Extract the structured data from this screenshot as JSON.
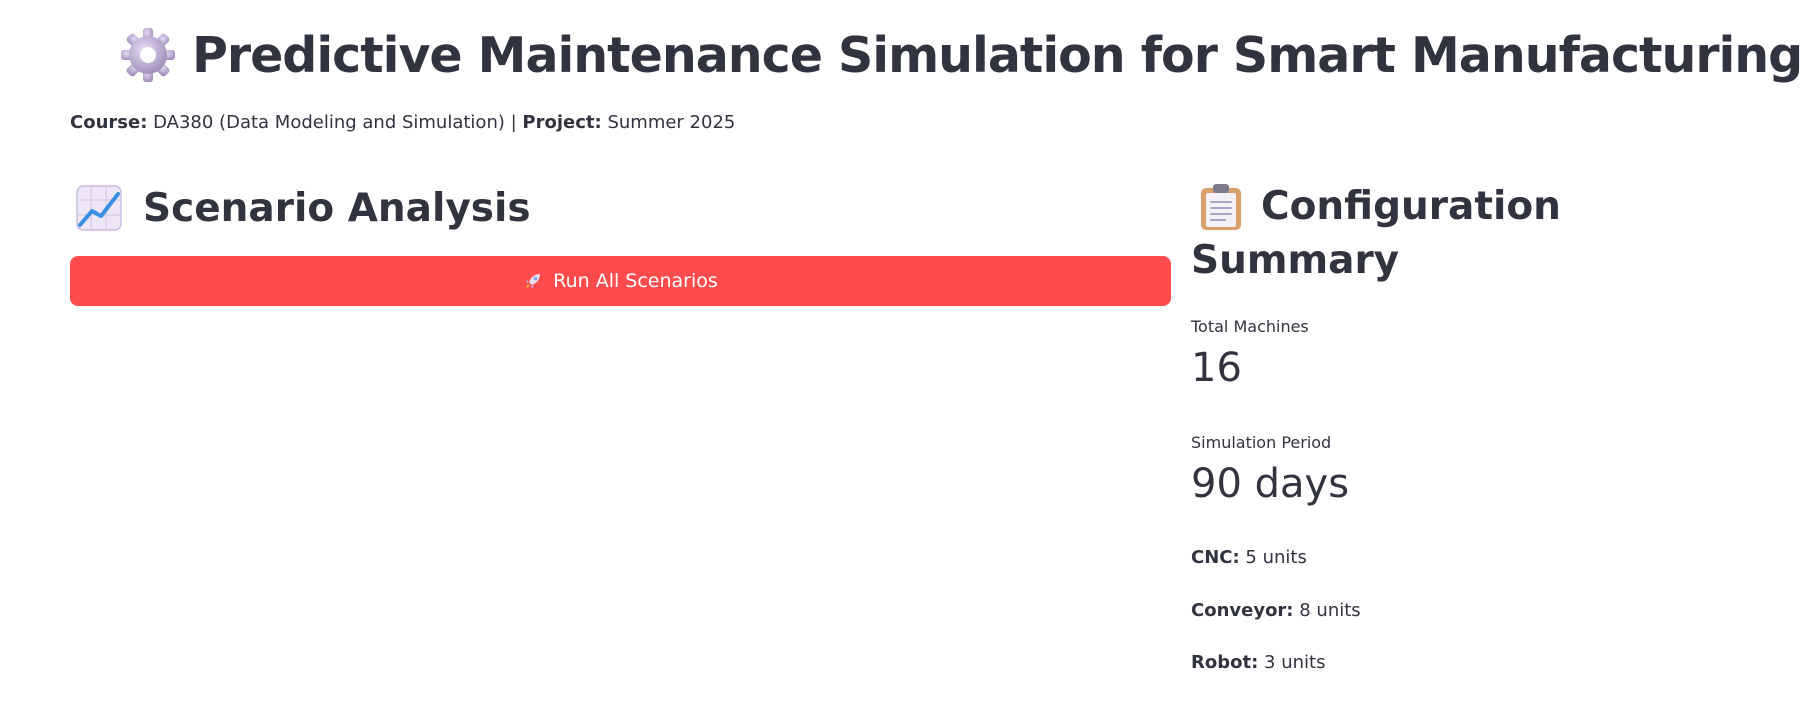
{
  "header": {
    "icon": "gear-icon",
    "title": "Predictive Maintenance Simulation for Smart Manufacturing"
  },
  "meta": {
    "course_label": "Course:",
    "course_value": "DA380 (Data Modeling and Simulation)",
    "separator": "|",
    "project_label": "Project:",
    "project_value": "Summer 2025"
  },
  "scenario": {
    "icon": "chart-increasing-icon",
    "heading": "Scenario Analysis",
    "run_button": {
      "icon": "rocket-icon",
      "label": "Run All Scenarios",
      "color": "#ff4b4b"
    }
  },
  "config": {
    "icon": "clipboard-icon",
    "heading_line1": "Configuration",
    "heading_line2": "Summary",
    "metrics": [
      {
        "label": "Total Machines",
        "value": "16"
      },
      {
        "label": "Simulation Period",
        "value": "90 days"
      }
    ],
    "units": [
      {
        "name": "CNC:",
        "value": "5 units"
      },
      {
        "name": "Conveyor:",
        "value": "8 units"
      },
      {
        "name": "Robot:",
        "value": "3 units"
      }
    ]
  }
}
